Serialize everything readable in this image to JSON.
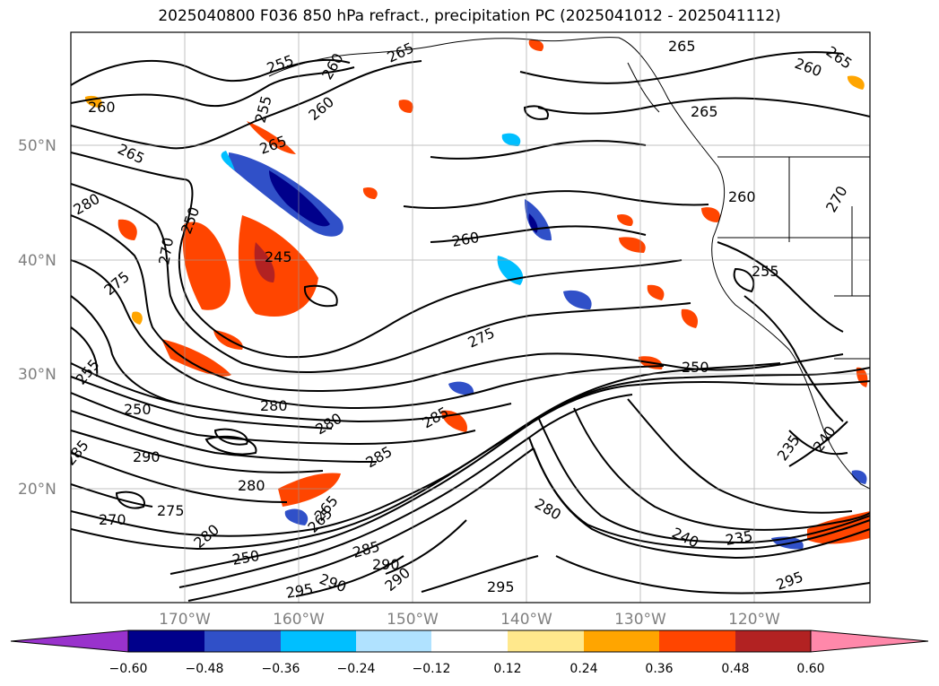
{
  "title": "2025040800 F036 850 hPa refract., precipitation PC (2025041012 - 2025041112)",
  "lat_labels": [
    "50°N",
    "40°N",
    "30°N",
    "20°N"
  ],
  "lon_labels": [
    "170°W",
    "160°W",
    "150°W",
    "140°W",
    "130°W",
    "120°W"
  ],
  "contour_labels": [
    "255",
    "260",
    "265",
    "260",
    "255",
    "265",
    "260",
    "260",
    "265",
    "265",
    "260",
    "265",
    "280",
    "250",
    "275",
    "270",
    "245",
    "260",
    "275",
    "265",
    "270",
    "250",
    "255",
    "250",
    "280",
    "280",
    "285",
    "290",
    "285",
    "280",
    "275",
    "270",
    "265",
    "280",
    "285",
    "290",
    "290",
    "295",
    "250",
    "235",
    "240",
    "280",
    "240",
    "235",
    "295",
    "290",
    "295",
    "255",
    "265",
    "285"
  ],
  "colorbar": {
    "ticks": [
      "−0.60",
      "−0.48",
      "−0.36",
      "−0.24",
      "−0.12",
      "0.12",
      "0.24",
      "0.36",
      "0.48",
      "0.60"
    ],
    "colors": [
      "#9932cc",
      "#00008b",
      "#3050c8",
      "#00bfff",
      "#b0e2ff",
      "#ffffff",
      "#ffe88c",
      "#ffa500",
      "#ff4500",
      "#b22222",
      "#ff88aa"
    ]
  }
}
